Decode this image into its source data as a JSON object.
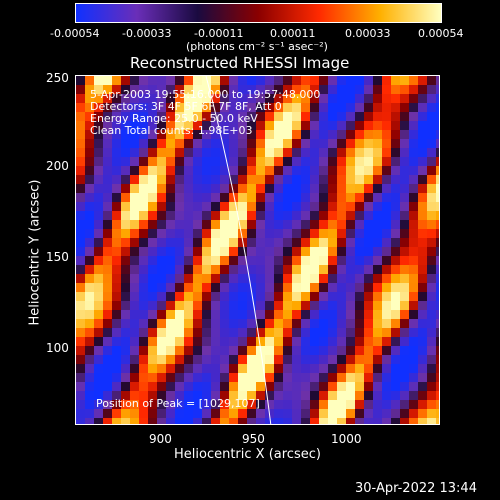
{
  "colorbar": {
    "ticks": [
      "-0.00054",
      "-0.00033",
      "-0.00011",
      "0.00011",
      "0.00033",
      "0.00054"
    ],
    "units_label": "(photons cm⁻² s⁻¹ asec⁻²)",
    "colors": [
      "#1030ff",
      "#6a2eb8",
      "#1a0a40",
      "#8b0000",
      "#ff2a00",
      "#ffb000",
      "#ffffc0"
    ]
  },
  "plot": {
    "title": "Reconstructed RHESSI Image",
    "annotations": [
      "5-Apr-2003 19:55:16.000 to 19:57:48.000",
      "Detectors: 3F 4F 5F 6F 7F 8F, Att 0",
      "Energy Range: 25.0 - 50.0 keV",
      "Clean     Total counts: 1.98E+03"
    ],
    "peak_label": "Position of Peak = [1029,107]",
    "xlabel": "Heliocentric X (arcsec)",
    "ylabel": "Heliocentric Y (arcsec)",
    "x_ticks": [
      "900",
      "950",
      "1000"
    ],
    "y_ticks": [
      "100",
      "150",
      "200",
      "250"
    ]
  },
  "footer": {
    "timestamp": "30-Apr-2022 13:44"
  }
}
